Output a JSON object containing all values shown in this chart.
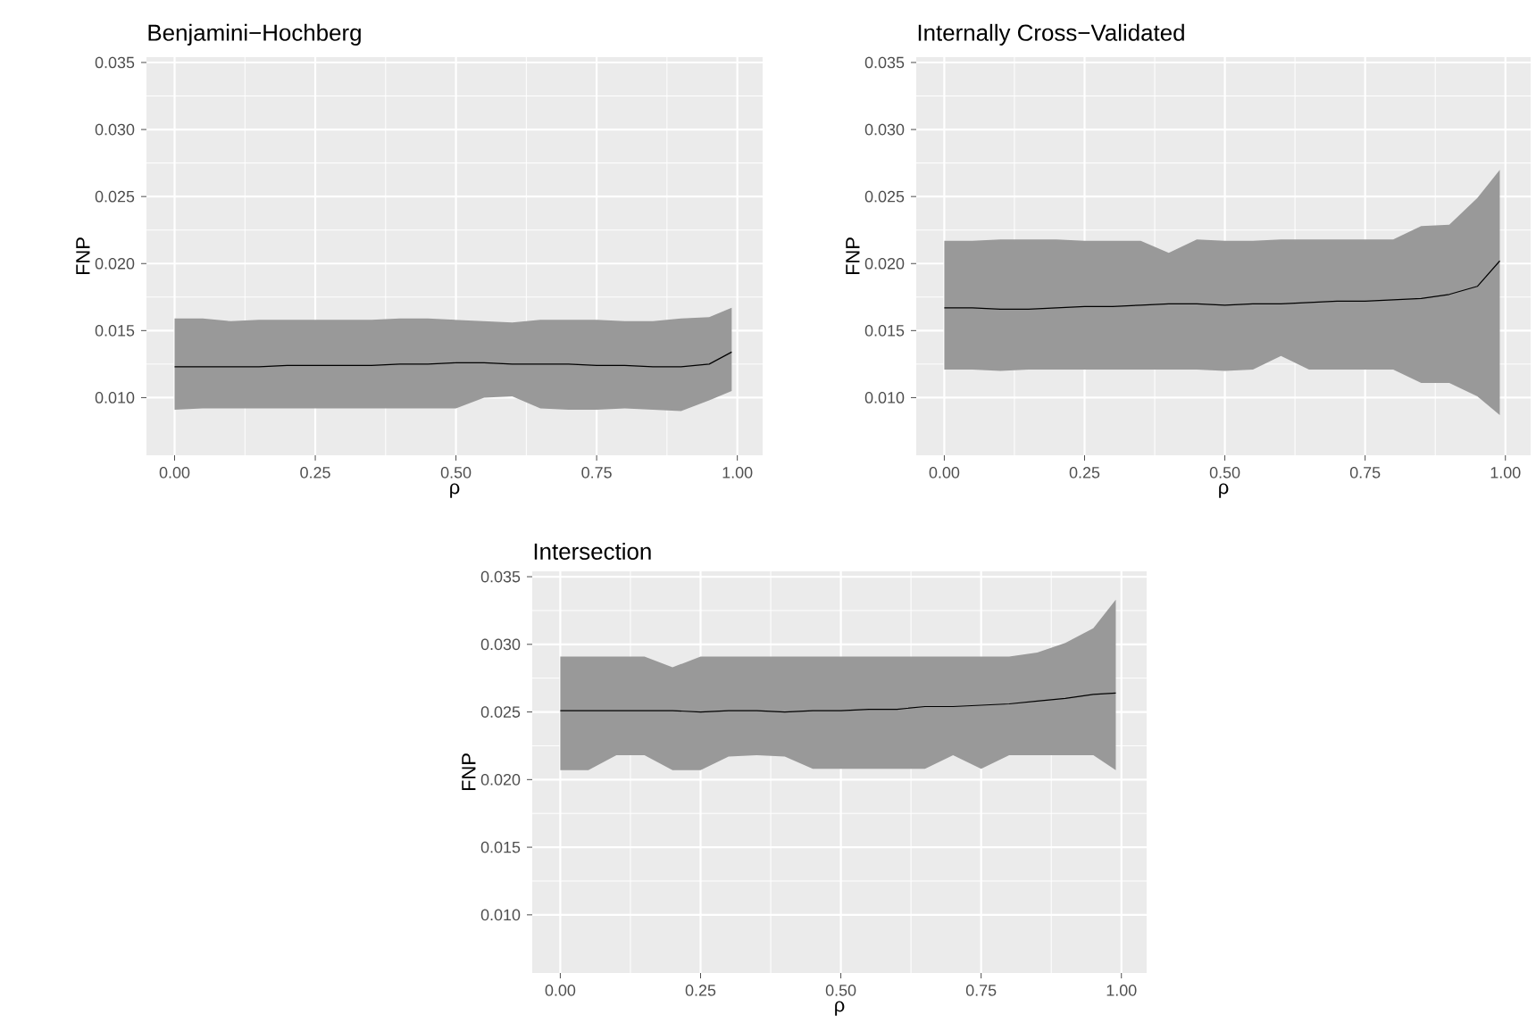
{
  "chart_data": [
    {
      "type": "line",
      "title": "Benjamini−Hochberg",
      "xlabel": "ρ",
      "ylabel": "FNP",
      "x": [
        0,
        0.05,
        0.1,
        0.15,
        0.2,
        0.25,
        0.3,
        0.35,
        0.4,
        0.45,
        0.5,
        0.55,
        0.6,
        0.65,
        0.7,
        0.75,
        0.8,
        0.85,
        0.9,
        0.95,
        0.99
      ],
      "series": [
        {
          "color": "#000000",
          "values": [
            0.0123,
            0.0123,
            0.0123,
            0.0123,
            0.0124,
            0.0124,
            0.0124,
            0.0124,
            0.0125,
            0.0125,
            0.0126,
            0.0126,
            0.0125,
            0.0125,
            0.0125,
            0.0124,
            0.0124,
            0.0123,
            0.0123,
            0.0125,
            0.0134
          ],
          "upper": [
            0.0159,
            0.0159,
            0.0157,
            0.0158,
            0.0158,
            0.0158,
            0.0158,
            0.0158,
            0.0159,
            0.0159,
            0.0158,
            0.0157,
            0.0156,
            0.0158,
            0.0158,
            0.0158,
            0.0157,
            0.0157,
            0.0159,
            0.016,
            0.0167
          ],
          "lower": [
            0.0091,
            0.0092,
            0.0092,
            0.0092,
            0.0092,
            0.0092,
            0.0092,
            0.0092,
            0.0092,
            0.0092,
            0.0092,
            0.01,
            0.0101,
            0.0092,
            0.0091,
            0.0091,
            0.0092,
            0.0091,
            0.009,
            0.0098,
            0.0105
          ]
        }
      ],
      "xlim": [
        -0.05,
        1.045
      ],
      "ylim": [
        0.0057,
        0.0354
      ],
      "xticks": [
        {
          "value": 0,
          "label": "0.00"
        },
        {
          "value": 0.25,
          "label": "0.25"
        },
        {
          "value": 0.5,
          "label": "0.50"
        },
        {
          "value": 0.75,
          "label": "0.75"
        },
        {
          "value": 1,
          "label": "1.00"
        }
      ],
      "yticks": [
        {
          "value": 0.01,
          "label": "0.010"
        },
        {
          "value": 0.015,
          "label": "0.015"
        },
        {
          "value": 0.02,
          "label": "0.020"
        },
        {
          "value": 0.025,
          "label": "0.025"
        },
        {
          "value": 0.03,
          "label": "0.030"
        },
        {
          "value": 0.035,
          "label": "0.035"
        }
      ],
      "grid": true
    },
    {
      "type": "line",
      "title": "Internally Cross−Validated",
      "xlabel": "ρ",
      "ylabel": "FNP",
      "x": [
        0,
        0.05,
        0.1,
        0.15,
        0.2,
        0.25,
        0.3,
        0.35,
        0.4,
        0.45,
        0.5,
        0.55,
        0.6,
        0.65,
        0.7,
        0.75,
        0.8,
        0.85,
        0.9,
        0.95,
        0.99
      ],
      "series": [
        {
          "color": "#000000",
          "values": [
            0.0167,
            0.0167,
            0.0166,
            0.0166,
            0.0167,
            0.0168,
            0.0168,
            0.0169,
            0.017,
            0.017,
            0.0169,
            0.017,
            0.017,
            0.0171,
            0.0172,
            0.0172,
            0.0173,
            0.0174,
            0.0177,
            0.0183,
            0.0202
          ],
          "upper": [
            0.0217,
            0.0217,
            0.0218,
            0.0218,
            0.0218,
            0.0217,
            0.0217,
            0.0217,
            0.0208,
            0.0218,
            0.0217,
            0.0217,
            0.0218,
            0.0218,
            0.0218,
            0.0218,
            0.0218,
            0.0228,
            0.0229,
            0.0249,
            0.027
          ],
          "lower": [
            0.0121,
            0.0121,
            0.012,
            0.0121,
            0.0121,
            0.0121,
            0.0121,
            0.0121,
            0.0121,
            0.0121,
            0.012,
            0.0121,
            0.0131,
            0.0121,
            0.0121,
            0.0121,
            0.0121,
            0.0111,
            0.0111,
            0.0101,
            0.0087
          ]
        }
      ],
      "xlim": [
        -0.05,
        1.045
      ],
      "ylim": [
        0.0057,
        0.0354
      ],
      "xticks": [
        {
          "value": 0,
          "label": "0.00"
        },
        {
          "value": 0.25,
          "label": "0.25"
        },
        {
          "value": 0.5,
          "label": "0.50"
        },
        {
          "value": 0.75,
          "label": "0.75"
        },
        {
          "value": 1,
          "label": "1.00"
        }
      ],
      "yticks": [
        {
          "value": 0.01,
          "label": "0.010"
        },
        {
          "value": 0.015,
          "label": "0.015"
        },
        {
          "value": 0.02,
          "label": "0.020"
        },
        {
          "value": 0.025,
          "label": "0.025"
        },
        {
          "value": 0.03,
          "label": "0.030"
        },
        {
          "value": 0.035,
          "label": "0.035"
        }
      ],
      "grid": true
    },
    {
      "type": "line",
      "title": "Intersection",
      "xlabel": "ρ",
      "ylabel": "FNP",
      "x": [
        0,
        0.05,
        0.1,
        0.15,
        0.2,
        0.25,
        0.3,
        0.35,
        0.4,
        0.45,
        0.5,
        0.55,
        0.6,
        0.65,
        0.7,
        0.75,
        0.8,
        0.85,
        0.9,
        0.95,
        0.99
      ],
      "series": [
        {
          "color": "#000000",
          "values": [
            0.0251,
            0.0251,
            0.0251,
            0.0251,
            0.0251,
            0.025,
            0.0251,
            0.0251,
            0.025,
            0.0251,
            0.0251,
            0.0252,
            0.0252,
            0.0254,
            0.0254,
            0.0255,
            0.0256,
            0.0258,
            0.026,
            0.0263,
            0.0264
          ],
          "upper": [
            0.0291,
            0.0291,
            0.0291,
            0.0291,
            0.0283,
            0.0291,
            0.0291,
            0.0291,
            0.0291,
            0.0291,
            0.0291,
            0.0291,
            0.0291,
            0.0291,
            0.0291,
            0.0291,
            0.0291,
            0.0294,
            0.0301,
            0.0312,
            0.0333
          ],
          "lower": [
            0.0207,
            0.0207,
            0.0218,
            0.0218,
            0.0207,
            0.0207,
            0.0217,
            0.0218,
            0.0217,
            0.0208,
            0.0208,
            0.0208,
            0.0208,
            0.0208,
            0.0218,
            0.0208,
            0.0218,
            0.0218,
            0.0218,
            0.0218,
            0.0207
          ]
        }
      ],
      "xlim": [
        -0.05,
        1.045
      ],
      "ylim": [
        0.0057,
        0.0354
      ],
      "xticks": [
        {
          "value": 0,
          "label": "0.00"
        },
        {
          "value": 0.25,
          "label": "0.25"
        },
        {
          "value": 0.5,
          "label": "0.50"
        },
        {
          "value": 0.75,
          "label": "0.75"
        },
        {
          "value": 1,
          "label": "1.00"
        }
      ],
      "yticks": [
        {
          "value": 0.01,
          "label": "0.010"
        },
        {
          "value": 0.015,
          "label": "0.015"
        },
        {
          "value": 0.02,
          "label": "0.020"
        },
        {
          "value": 0.025,
          "label": "0.025"
        },
        {
          "value": 0.03,
          "label": "0.030"
        },
        {
          "value": 0.035,
          "label": "0.035"
        }
      ],
      "grid": true
    }
  ]
}
